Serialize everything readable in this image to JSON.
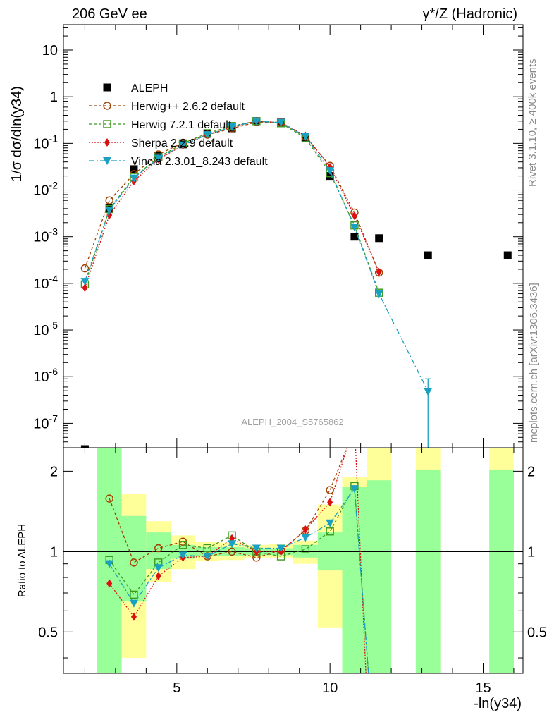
{
  "header": {
    "left": "206 GeV ee",
    "right": "γ*/Z (Hadronic)"
  },
  "side_labels": {
    "rivet": "Rivet 3.1.10, ≥ 400k events",
    "mcplots": "mcplots.cern.ch [arXiv:1306.3436]"
  },
  "watermark": "ALEPH_2004_S5765862",
  "chart_data": [
    {
      "panel": "main",
      "type": "line",
      "yscale": "log",
      "ylabel": "1/σ  dσ/dln(y34)",
      "xlim": [
        1.3,
        16.3
      ],
      "ylim": [
        3e-08,
        35
      ],
      "yticks": [
        {
          "value": 1e-07,
          "label": "10^-7"
        },
        {
          "value": 1e-06,
          "label": "10^-6"
        },
        {
          "value": 1e-05,
          "label": "10^-5"
        },
        {
          "value": 0.0001,
          "label": "10^-4"
        },
        {
          "value": 0.001,
          "label": "10^-3"
        },
        {
          "value": 0.01,
          "label": "10^-2"
        },
        {
          "value": 0.1,
          "label": "10^-1"
        },
        {
          "value": 1,
          "label": "1"
        },
        {
          "value": 10,
          "label": "10"
        }
      ],
      "legend": [
        "ALEPH",
        "Herwig++ 2.6.2 default",
        "Herwig 7.2.1 default",
        "Sherpa 2.2.9 default",
        "Vincia 2.3.01_8.243 default"
      ],
      "series": [
        {
          "name": "ALEPH",
          "color": "#000000",
          "marker": "square-filled",
          "x": [
            2.0,
            2.8,
            3.6,
            4.4,
            5.2,
            6.0,
            6.8,
            7.6,
            8.4,
            9.2,
            10.0,
            10.8,
            11.6,
            13.2,
            15.8
          ],
          "y": [
            2.8e-08,
            0.0042,
            0.028,
            0.055,
            0.095,
            0.16,
            0.21,
            0.3,
            0.28,
            0.13,
            0.02,
            0.001,
            0.00093,
            0.0004,
            0.0004
          ]
        },
        {
          "name": "Herwig++ 2.6.2 default",
          "color": "#a04000",
          "marker": "circle-open",
          "dash": "4,3",
          "x": [
            2.0,
            2.8,
            3.6,
            4.4,
            5.2,
            6.0,
            6.8,
            7.6,
            8.4,
            9.2,
            10.0,
            10.8,
            11.6
          ],
          "y": [
            0.00021,
            0.006,
            0.022,
            0.058,
            0.103,
            0.153,
            0.21,
            0.285,
            0.28,
            0.14,
            0.033,
            0.0033,
            0.00017
          ]
        },
        {
          "name": "Herwig 7.2.1 default",
          "color": "#3c9a1e",
          "marker": "square-open",
          "dash": "4,3",
          "x": [
            2.0,
            2.8,
            3.6,
            4.4,
            5.2,
            6.0,
            6.8,
            7.6,
            8.4,
            9.2,
            10.0,
            10.8,
            11.6
          ],
          "y": [
            9.5e-05,
            0.0039,
            0.019,
            0.05,
            0.1,
            0.165,
            0.235,
            0.3,
            0.27,
            0.13,
            0.023,
            0.00175,
            6.3e-05
          ]
        },
        {
          "name": "Sherpa 2.2.9 default",
          "color": "#dd1010",
          "marker": "diamond-filled",
          "dash": "2,2",
          "x": [
            2.0,
            2.8,
            3.6,
            4.4,
            5.2,
            6.0,
            6.8,
            7.6,
            8.4,
            9.2,
            10.0,
            10.8,
            11.6
          ],
          "y": [
            8e-05,
            0.0029,
            0.0155,
            0.046,
            0.09,
            0.155,
            0.225,
            0.3,
            0.28,
            0.145,
            0.031,
            0.0028,
            0.000175
          ]
        },
        {
          "name": "Vincia 2.3.01_8.243 default",
          "color": "#1aa0c0",
          "marker": "triangle-down-filled",
          "dash": "8,3,2,3",
          "x": [
            2.0,
            2.8,
            3.6,
            4.4,
            5.2,
            6.0,
            6.8,
            7.6,
            8.4,
            9.2,
            10.0,
            10.8,
            11.6,
            13.2
          ],
          "y": [
            0.00011,
            0.0037,
            0.018,
            0.048,
            0.092,
            0.153,
            0.225,
            0.3,
            0.28,
            0.14,
            0.026,
            0.0016,
            6e-05,
            4.8e-07
          ]
        }
      ]
    },
    {
      "panel": "ratio",
      "type": "line",
      "yscale": "log",
      "ylabel": "Ratio to ALEPH",
      "xlabel": "-ln(y34)",
      "xlim": [
        1.3,
        16.3
      ],
      "ylim": [
        0.35,
        2.45
      ],
      "yticks": [
        0.5,
        1,
        2
      ],
      "xticks": [
        5,
        10,
        15
      ],
      "reference_line": 1,
      "uncertainty_bands": [
        {
          "x0": 2.4,
          "x1": 3.2,
          "stat_low": 0.3,
          "stat_high": 2.6,
          "tot_low": 0.3,
          "tot_high": 2.6
        },
        {
          "x0": 3.2,
          "x1": 4.0,
          "stat_low": 0.65,
          "stat_high": 1.36,
          "tot_low": 0.4,
          "tot_high": 1.64
        },
        {
          "x0": 4.0,
          "x1": 4.8,
          "stat_low": 0.86,
          "stat_high": 1.18,
          "tot_low": 0.77,
          "tot_high": 1.3
        },
        {
          "x0": 4.8,
          "x1": 5.6,
          "stat_low": 0.94,
          "stat_high": 1.06,
          "tot_low": 0.86,
          "tot_high": 1.15
        },
        {
          "x0": 5.6,
          "x1": 6.4,
          "stat_low": 0.96,
          "stat_high": 1.04,
          "tot_low": 0.92,
          "tot_high": 1.09
        },
        {
          "x0": 6.4,
          "x1": 7.2,
          "stat_low": 0.96,
          "stat_high": 1.04,
          "tot_low": 0.93,
          "tot_high": 1.08
        },
        {
          "x0": 7.2,
          "x1": 8.0,
          "stat_low": 0.97,
          "stat_high": 1.03,
          "tot_low": 0.95,
          "tot_high": 1.06
        },
        {
          "x0": 8.0,
          "x1": 8.8,
          "stat_low": 0.97,
          "stat_high": 1.03,
          "tot_low": 0.95,
          "tot_high": 1.07
        },
        {
          "x0": 8.8,
          "x1": 9.6,
          "stat_low": 0.95,
          "stat_high": 1.06,
          "tot_low": 0.9,
          "tot_high": 1.1
        },
        {
          "x0": 9.6,
          "x1": 10.4,
          "stat_low": 0.85,
          "stat_high": 1.18,
          "tot_low": 0.52,
          "tot_high": 1.5
        },
        {
          "x0": 10.4,
          "x1": 11.2,
          "stat_low": 0.3,
          "stat_high": 1.75,
          "tot_low": 0.3,
          "tot_high": 1.9
        },
        {
          "x0": 11.2,
          "x1": 12.0,
          "stat_low": 0.3,
          "stat_high": 1.85,
          "tot_low": 0.3,
          "tot_high": 2.6
        },
        {
          "x0": 12.8,
          "x1": 13.6,
          "stat_low": 0.3,
          "stat_high": 2.03,
          "tot_low": 0.3,
          "tot_high": 2.6
        },
        {
          "x0": 15.2,
          "x1": 16.0,
          "stat_low": 0.3,
          "stat_high": 2.03,
          "tot_low": 0.3,
          "tot_high": 2.6
        }
      ],
      "series": [
        {
          "name": "Herwig++ 2.6.2 default",
          "color": "#a04000",
          "marker": "circle-open",
          "dash": "4,3",
          "x": [
            2.8,
            3.6,
            4.4,
            5.2,
            6.0,
            6.8,
            7.6,
            8.4,
            9.2,
            10.0
          ],
          "y": [
            1.58,
            0.91,
            1.03,
            1.09,
            0.96,
            1.0,
            0.95,
            1.01,
            1.2,
            1.7
          ],
          "tail": [
            [
              10.8,
              2.9
            ],
            [
              11.0,
              3.5
            ]
          ]
        },
        {
          "name": "Herwig 7.2.1 default",
          "color": "#3c9a1e",
          "marker": "square-open",
          "dash": "4,3",
          "x": [
            2.8,
            3.6,
            4.4,
            5.2,
            6.0,
            6.8,
            7.6,
            8.4,
            9.2,
            10.0,
            10.8
          ],
          "y": [
            0.93,
            0.69,
            0.91,
            1.06,
            1.03,
            1.15,
            1.0,
            0.96,
            1.02,
            1.19,
            1.76
          ],
          "tail": [
            [
              11.3,
              0.3
            ]
          ]
        },
        {
          "name": "Sherpa 2.2.9 default",
          "color": "#dd1010",
          "marker": "diamond-filled",
          "dash": "2,2",
          "x": [
            2.8,
            3.6,
            4.4,
            5.2,
            6.0,
            6.8,
            7.6,
            8.4,
            9.2,
            10.0
          ],
          "y": [
            0.76,
            0.57,
            0.81,
            0.95,
            0.96,
            1.12,
            1.0,
            1.0,
            1.21,
            1.53
          ],
          "tail": [
            [
              10.8,
              3.0
            ],
            [
              11.2,
              0.3
            ]
          ]
        },
        {
          "name": "Vincia 2.3.01_8.243 default",
          "color": "#1aa0c0",
          "marker": "triangle-down-filled",
          "dash": "8,3,2,3",
          "x": [
            2.8,
            3.6,
            4.4,
            5.2,
            6.0,
            6.8,
            7.6,
            8.4,
            9.2,
            10.0,
            10.8
          ],
          "y": [
            0.9,
            0.64,
            0.87,
            0.97,
            0.96,
            1.07,
            1.03,
            1.03,
            1.13,
            1.28,
            1.72
          ],
          "tail": [
            [
              11.3,
              0.3
            ]
          ]
        }
      ]
    }
  ]
}
